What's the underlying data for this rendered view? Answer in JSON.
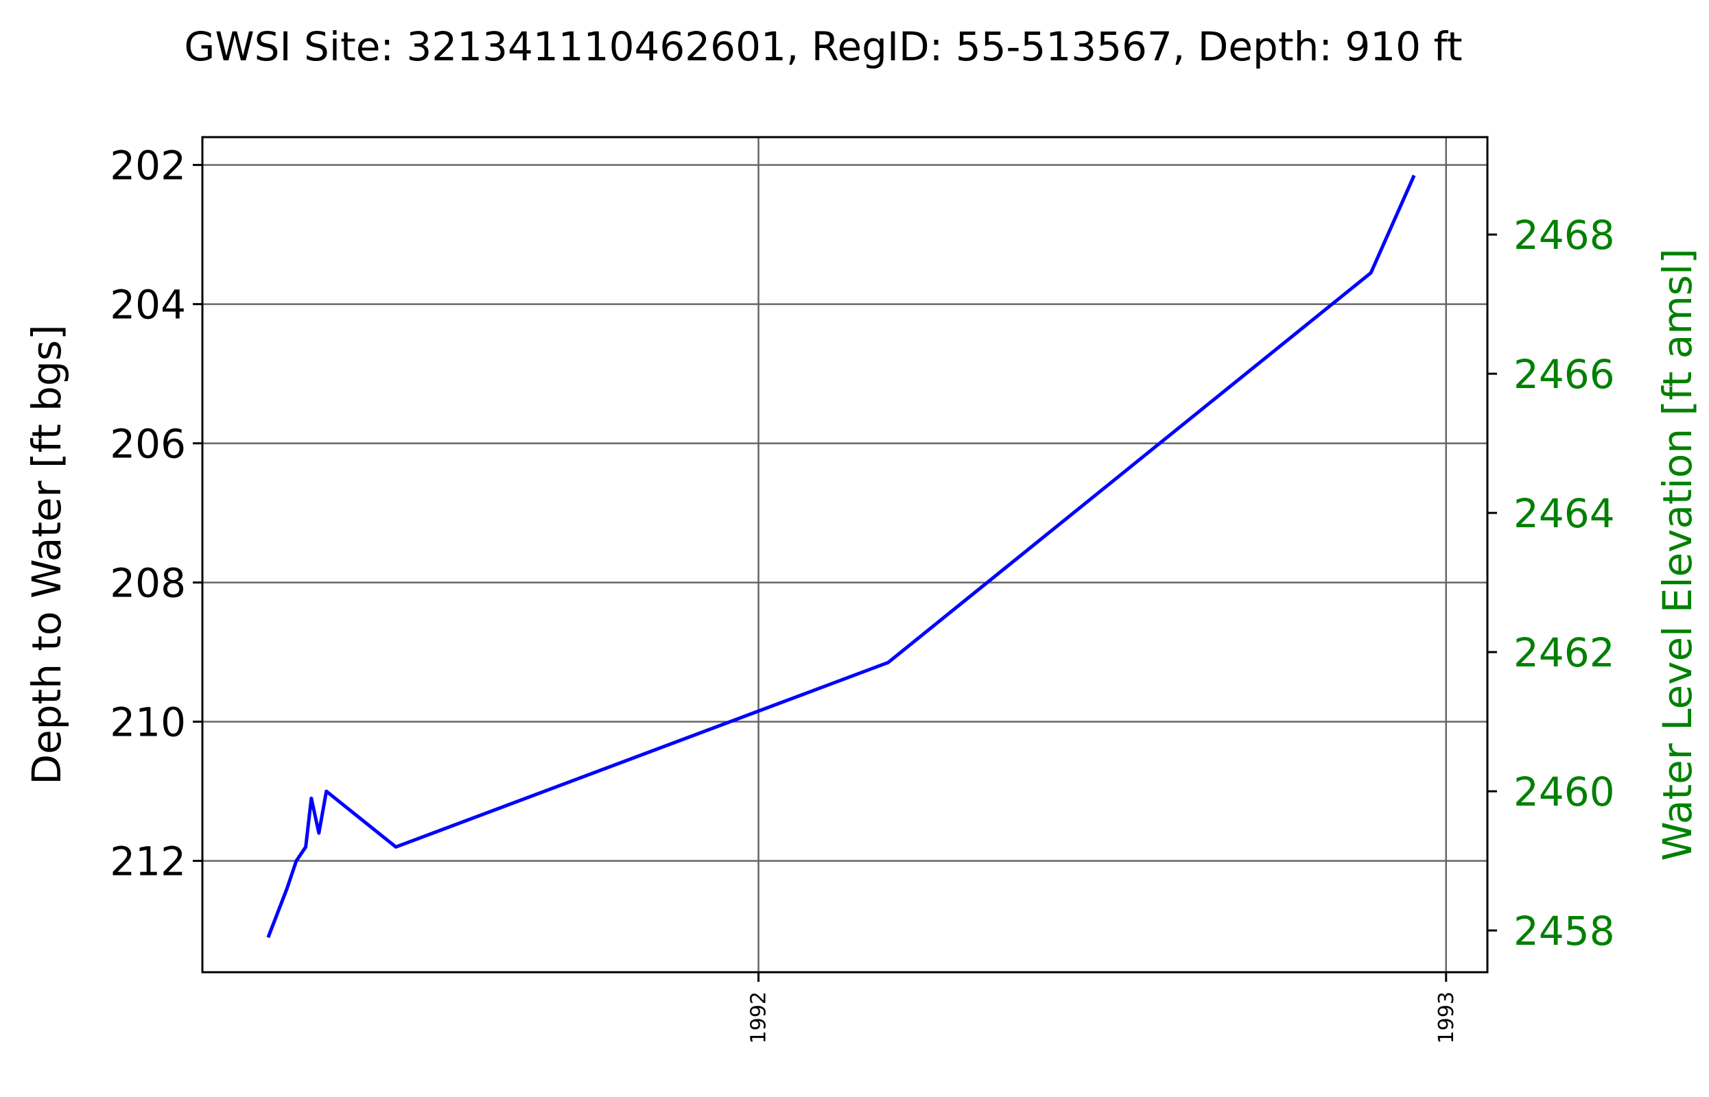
{
  "chart_data": {
    "type": "line",
    "title": "GWSI Site: 321341110462601, RegID: 55-513567, Depth: 910 ft",
    "ylabel": "Depth to Water [ft bgs]",
    "y2label": "Water Level Elevation [ft amsl]",
    "xlabel": "",
    "y_inverted": true,
    "ylim": [
      213.6,
      201.6
    ],
    "y2lim": [
      2457.4,
      2469.4
    ],
    "xlim": [
      "1991-03-11",
      "1993-01-23"
    ],
    "yticks": [
      202,
      204,
      206,
      208,
      210,
      212
    ],
    "y2ticks": [
      2458,
      2460,
      2462,
      2464,
      2466,
      2468
    ],
    "xticks": [
      {
        "date": "1992-01-01",
        "label": "1992"
      },
      {
        "date": "1993-01-01",
        "label": "1993"
      }
    ],
    "grid": true,
    "legend": "none",
    "colors": {
      "series": "#0000ff",
      "right_axis": "#008000",
      "grid": "#666666",
      "axes": "#000000"
    },
    "series": [
      {
        "x": [
          "1991-04-15",
          "1991-04-25",
          "1991-04-30",
          "1991-05-05",
          "1991-05-08",
          "1991-05-12",
          "1991-05-16",
          "1991-06-22",
          "1992-03-10",
          "1992-11-22",
          "1992-12-15"
        ],
        "y": [
          213.1,
          212.4,
          212.0,
          211.8,
          211.1,
          211.6,
          211.0,
          211.8,
          209.15,
          203.55,
          202.15
        ]
      }
    ]
  }
}
